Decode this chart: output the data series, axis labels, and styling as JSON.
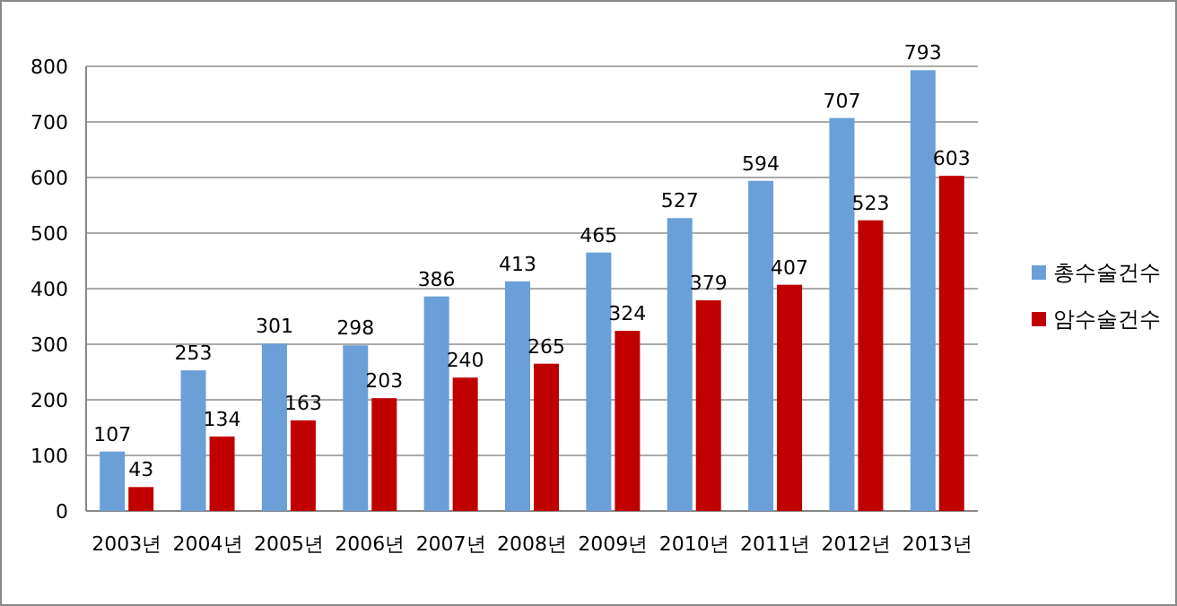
{
  "chart_data": {
    "type": "bar",
    "categories": [
      "2003년",
      "2004년",
      "2005년",
      "2006년",
      "2007년",
      "2008년",
      "2009년",
      "2010년",
      "2011년",
      "2012년",
      "2013년"
    ],
    "series": [
      {
        "name": "총수술건수",
        "color": "#6a9fd8",
        "values": [
          107,
          253,
          301,
          298,
          386,
          413,
          465,
          527,
          594,
          707,
          793
        ]
      },
      {
        "name": "암수술건수",
        "color": "#c00000",
        "values": [
          43,
          134,
          163,
          203,
          240,
          265,
          324,
          379,
          407,
          523,
          603
        ]
      }
    ],
    "ylim": [
      0,
      800
    ],
    "yticks": [
      0,
      100,
      200,
      300,
      400,
      500,
      600,
      700,
      800
    ],
    "grid": "y",
    "legend": "right",
    "data_labels": true
  }
}
